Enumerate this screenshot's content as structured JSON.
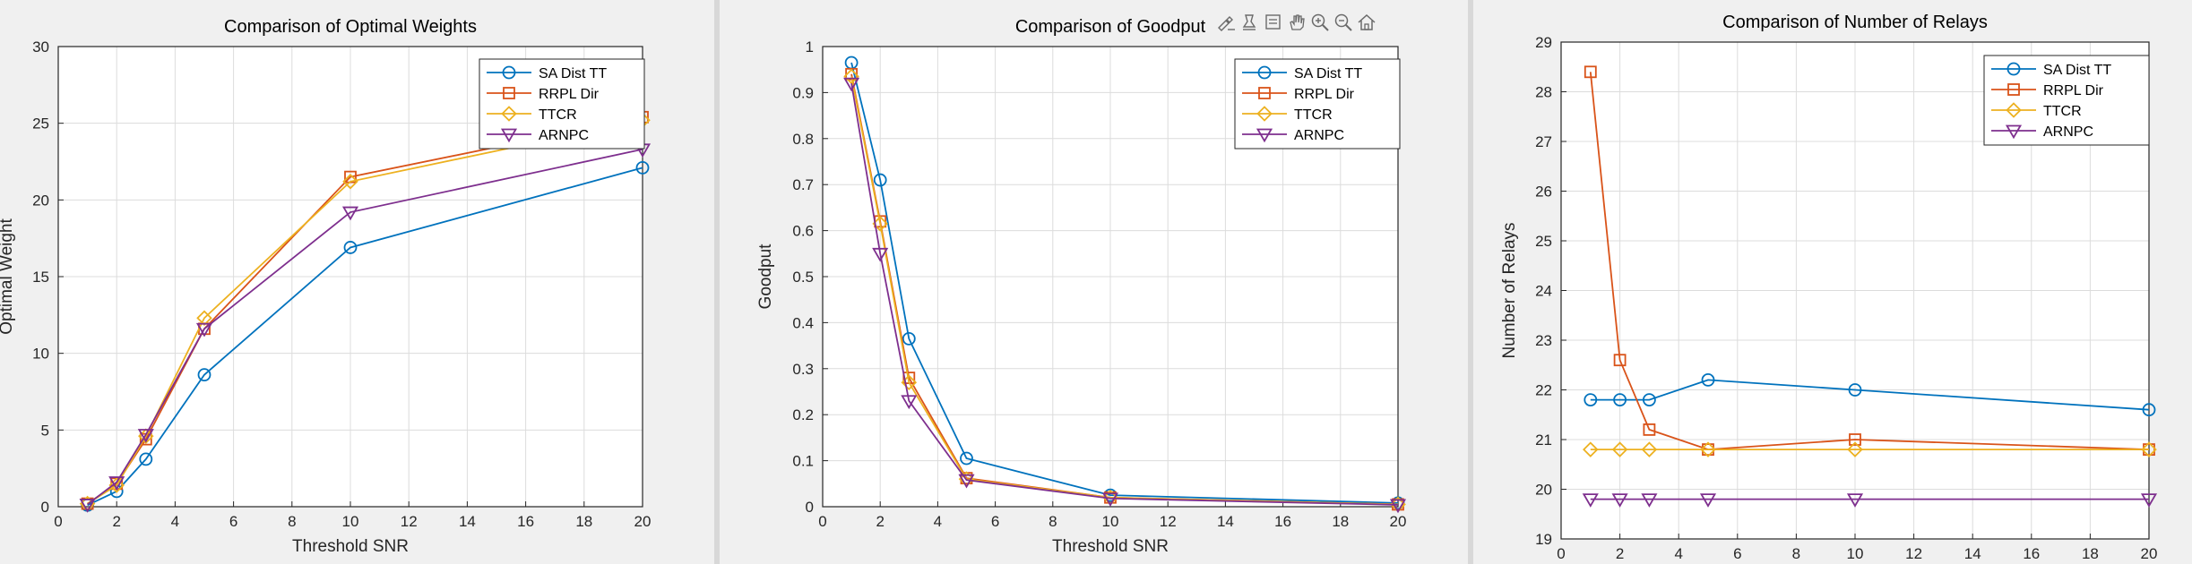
{
  "colors": {
    "series": [
      "#0072BD",
      "#D95319",
      "#EDB120",
      "#7E2F8E"
    ],
    "grid": "#dcdcdc",
    "axis": "#262626",
    "toolbar": "#6a6a6a"
  },
  "toolbar": {
    "icons": [
      "brush-icon",
      "data-tips-icon",
      "datatip-icon",
      "pan-icon",
      "zoom-in-icon",
      "zoom-out-icon",
      "home-icon"
    ]
  },
  "chart_data": [
    {
      "type": "line",
      "title": "Comparison of Optimal Weights",
      "xlabel": "Threshold SNR",
      "ylabel": "Optimal Weight",
      "xlim": [
        0,
        20
      ],
      "ylim": [
        0,
        30
      ],
      "xticks": [
        0,
        2,
        4,
        6,
        8,
        10,
        12,
        14,
        16,
        18,
        20
      ],
      "yticks": [
        0,
        5,
        10,
        15,
        20,
        25,
        30
      ],
      "xtick_labels": [
        "0",
        "2",
        "4",
        "6",
        "8",
        "10",
        "12",
        "14",
        "16",
        "18",
        "20"
      ],
      "ytick_labels": [
        "0",
        "5",
        "10",
        "15",
        "20",
        "25",
        "30"
      ],
      "grid": true,
      "legend_position": "top-right",
      "x": [
        1,
        2,
        3,
        5,
        10,
        20
      ],
      "series": [
        {
          "name": "SA Dist TT",
          "marker": "circle",
          "values": [
            0.1,
            1.0,
            3.1,
            8.6,
            16.9,
            22.1
          ]
        },
        {
          "name": "RRPL Dir",
          "marker": "square",
          "values": [
            0.2,
            1.5,
            4.4,
            11.6,
            21.5,
            25.4
          ]
        },
        {
          "name": "TTCR",
          "marker": "diamond",
          "values": [
            0.2,
            1.4,
            4.6,
            12.3,
            21.2,
            25.2
          ]
        },
        {
          "name": "ARNPC",
          "marker": "triangle-down",
          "values": [
            0.15,
            1.6,
            4.7,
            11.6,
            19.2,
            23.3
          ]
        }
      ]
    },
    {
      "type": "line",
      "title": "Comparison of Goodput",
      "xlabel": "Threshold SNR",
      "ylabel": "Goodput",
      "xlim": [
        0,
        20
      ],
      "ylim": [
        0,
        1
      ],
      "xticks": [
        0,
        2,
        4,
        6,
        8,
        10,
        12,
        14,
        16,
        18,
        20
      ],
      "yticks": [
        0,
        0.1,
        0.2,
        0.3,
        0.4,
        0.5,
        0.6,
        0.7,
        0.8,
        0.9,
        1
      ],
      "xtick_labels": [
        "0",
        "2",
        "4",
        "6",
        "8",
        "10",
        "12",
        "14",
        "16",
        "18",
        "20"
      ],
      "ytick_labels": [
        "0",
        "0.1",
        "0.2",
        "0.3",
        "0.4",
        "0.5",
        "0.6",
        "0.7",
        "0.8",
        "0.9",
        "1"
      ],
      "grid": true,
      "legend_position": "top-right",
      "x": [
        1,
        2,
        3,
        5,
        10,
        20
      ],
      "series": [
        {
          "name": "SA Dist TT",
          "marker": "circle",
          "values": [
            0.965,
            0.71,
            0.365,
            0.105,
            0.025,
            0.008
          ]
        },
        {
          "name": "RRPL Dir",
          "marker": "square",
          "values": [
            0.94,
            0.62,
            0.28,
            0.062,
            0.02,
            0.005
          ]
        },
        {
          "name": "TTCR",
          "marker": "diamond",
          "values": [
            0.935,
            0.615,
            0.27,
            0.06,
            0.02,
            0.005
          ]
        },
        {
          "name": "ARNPC",
          "marker": "triangle-down",
          "values": [
            0.92,
            0.55,
            0.23,
            0.058,
            0.018,
            0.004
          ]
        }
      ]
    },
    {
      "type": "line",
      "title": "Comparison of Number of Relays",
      "xlabel": "Threshold SNR",
      "ylabel": "Number of Relays",
      "xlim": [
        0,
        20
      ],
      "ylim": [
        19,
        29
      ],
      "xticks": [
        0,
        2,
        4,
        6,
        8,
        10,
        12,
        14,
        16,
        18,
        20
      ],
      "yticks": [
        19,
        20,
        21,
        22,
        23,
        24,
        25,
        26,
        27,
        28,
        29
      ],
      "xtick_labels": [
        "0",
        "2",
        "4",
        "6",
        "8",
        "10",
        "12",
        "14",
        "16",
        "18",
        "20"
      ],
      "ytick_labels": [
        "19",
        "20",
        "21",
        "22",
        "23",
        "24",
        "25",
        "26",
        "27",
        "28",
        "29"
      ],
      "grid": true,
      "legend_position": "top-right",
      "x": [
        1,
        2,
        3,
        5,
        10,
        20
      ],
      "series": [
        {
          "name": "SA Dist TT",
          "marker": "circle",
          "values": [
            21.8,
            21.8,
            21.8,
            22.2,
            22.0,
            21.6
          ]
        },
        {
          "name": "RRPL Dir",
          "marker": "square",
          "values": [
            28.4,
            22.6,
            21.2,
            20.8,
            21.0,
            20.8
          ]
        },
        {
          "name": "TTCR",
          "marker": "diamond",
          "values": [
            20.8,
            20.8,
            20.8,
            20.8,
            20.8,
            20.8
          ]
        },
        {
          "name": "ARNPC",
          "marker": "triangle-down",
          "values": [
            19.8,
            19.8,
            19.8,
            19.8,
            19.8,
            19.8
          ]
        }
      ]
    }
  ]
}
